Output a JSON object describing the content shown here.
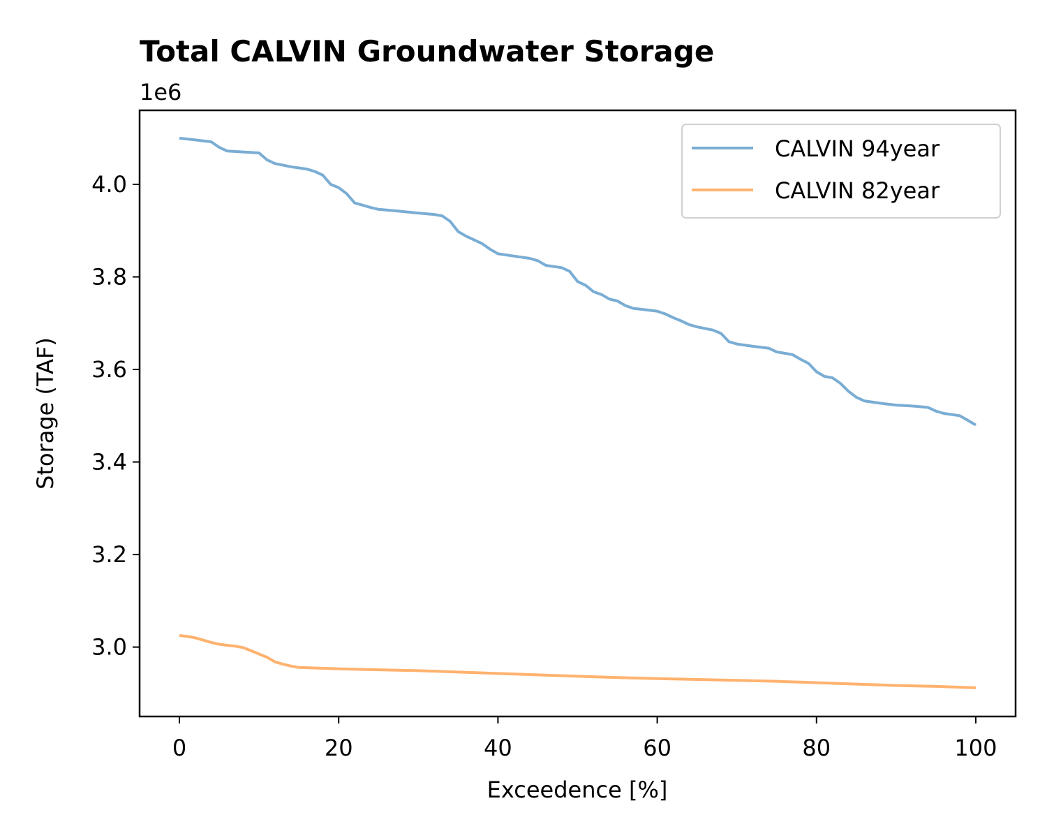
{
  "chart_data": {
    "type": "line",
    "title": "Total CALVIN Groundwater Storage",
    "xlabel": "Exceedence [%]",
    "ylabel": "Storage (TAF)",
    "y_offset_label": "1e6",
    "y_scale": 1000000,
    "xlim": [
      -5,
      105
    ],
    "ylim": [
      2.85,
      4.16
    ],
    "x_ticks": [
      0,
      20,
      40,
      60,
      80,
      100
    ],
    "y_ticks": [
      3.0,
      3.2,
      3.4,
      3.6,
      3.8,
      4.0
    ],
    "y_tick_labels": [
      "3.0",
      "3.2",
      "3.4",
      "3.6",
      "3.8",
      "4.0"
    ],
    "grid": false,
    "legend_position": "top-right",
    "series": [
      {
        "name": "CALVIN 94year",
        "color": "#7aadd4",
        "x": [
          0,
          2,
          4,
          5,
          6,
          8,
          10,
          11,
          12,
          14,
          16,
          17,
          18,
          19,
          20,
          21,
          22,
          23,
          24,
          25,
          27,
          30,
          32,
          33,
          34,
          35,
          36,
          38,
          39,
          40,
          42,
          44,
          45,
          46,
          48,
          49,
          50,
          51,
          52,
          53,
          54,
          55,
          56,
          57,
          58,
          60,
          61,
          62,
          63,
          64,
          65,
          67,
          68,
          69,
          70,
          72,
          74,
          75,
          77,
          78,
          79,
          80,
          81,
          82,
          83,
          84,
          85,
          86,
          88,
          90,
          92,
          94,
          95,
          96,
          98,
          99,
          100
        ],
        "y": [
          4.1,
          4.096,
          4.092,
          4.08,
          4.072,
          4.07,
          4.068,
          4.053,
          4.045,
          4.038,
          4.033,
          4.028,
          4.02,
          4.0,
          3.993,
          3.98,
          3.96,
          3.955,
          3.95,
          3.946,
          3.943,
          3.938,
          3.935,
          3.932,
          3.92,
          3.898,
          3.888,
          3.872,
          3.86,
          3.85,
          3.845,
          3.84,
          3.835,
          3.825,
          3.82,
          3.812,
          3.79,
          3.782,
          3.768,
          3.762,
          3.752,
          3.748,
          3.738,
          3.732,
          3.73,
          3.726,
          3.72,
          3.712,
          3.705,
          3.697,
          3.692,
          3.685,
          3.678,
          3.66,
          3.655,
          3.65,
          3.646,
          3.638,
          3.632,
          3.622,
          3.613,
          3.595,
          3.585,
          3.582,
          3.57,
          3.553,
          3.54,
          3.532,
          3.527,
          3.523,
          3.521,
          3.518,
          3.51,
          3.505,
          3.5,
          3.49,
          3.48
        ]
      },
      {
        "name": "CALVIN 82year",
        "color": "#ffb26e",
        "x": [
          0,
          1,
          2,
          3,
          4,
          5,
          6,
          7,
          8,
          9,
          10,
          11,
          12,
          13,
          14,
          15,
          20,
          25,
          30,
          35,
          40,
          45,
          50,
          55,
          60,
          65,
          70,
          75,
          80,
          85,
          90,
          95,
          100
        ],
        "y": [
          3.025,
          3.023,
          3.02,
          3.015,
          3.01,
          3.006,
          3.004,
          3.002,
          2.999,
          2.992,
          2.985,
          2.978,
          2.968,
          2.963,
          2.959,
          2.956,
          2.953,
          2.951,
          2.949,
          2.946,
          2.943,
          2.94,
          2.937,
          2.934,
          2.932,
          2.93,
          2.928,
          2.926,
          2.923,
          2.92,
          2.917,
          2.915,
          2.912
        ]
      }
    ]
  }
}
